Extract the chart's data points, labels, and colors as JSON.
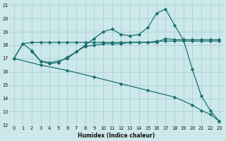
{
  "xlabel": "Humidex (Indice chaleur)",
  "background_color": "#cce8ea",
  "grid_color": "#aad0d4",
  "line_color": "#1a7070",
  "xlim": [
    -0.5,
    23.5
  ],
  "ylim": [
    12,
    21.2
  ],
  "yticks": [
    12,
    13,
    14,
    15,
    16,
    17,
    18,
    19,
    20,
    21
  ],
  "xticks": [
    0,
    1,
    2,
    3,
    4,
    5,
    6,
    7,
    8,
    9,
    10,
    11,
    12,
    13,
    14,
    15,
    16,
    17,
    18,
    19,
    20,
    21,
    22,
    23
  ],
  "series": [
    {
      "x": [
        0,
        1,
        2,
        3,
        4,
        5,
        6,
        7,
        8,
        9,
        10,
        11,
        12,
        13,
        14,
        15,
        16,
        17,
        18,
        19,
        20,
        21,
        22,
        23
      ],
      "y": [
        17.0,
        18.1,
        18.2,
        18.2,
        18.2,
        18.2,
        18.2,
        18.2,
        18.2,
        18.2,
        18.2,
        18.2,
        18.2,
        18.2,
        18.2,
        18.2,
        18.3,
        18.3,
        18.3,
        18.3,
        18.3,
        18.3,
        18.3,
        18.3
      ]
    },
    {
      "x": [
        0,
        1,
        2,
        3,
        4,
        5,
        6,
        7,
        8,
        9,
        10,
        11,
        12,
        13,
        14,
        15,
        16,
        17,
        18,
        19,
        20,
        21,
        22,
        23
      ],
      "y": [
        17.0,
        18.1,
        17.6,
        16.8,
        16.7,
        16.8,
        17.0,
        17.5,
        17.9,
        18.0,
        18.1,
        18.1,
        18.1,
        18.2,
        18.2,
        18.2,
        18.2,
        18.5,
        18.4,
        18.4,
        18.4,
        18.4,
        18.4,
        18.4
      ]
    },
    {
      "x": [
        2,
        3,
        4,
        5,
        6,
        7,
        8,
        9,
        10,
        11,
        12,
        13,
        14,
        15,
        16,
        17,
        18,
        19,
        20,
        21,
        22,
        23
      ],
      "y": [
        17.5,
        16.8,
        16.6,
        16.7,
        17.1,
        17.5,
        18.0,
        18.5,
        19.0,
        19.2,
        18.8,
        18.7,
        18.8,
        19.3,
        20.4,
        20.7,
        19.5,
        18.4,
        16.2,
        14.2,
        13.1,
        12.3
      ]
    },
    {
      "x": [
        0,
        3,
        6,
        9,
        12,
        15,
        18,
        20,
        21,
        22,
        23
      ],
      "y": [
        17.0,
        16.5,
        16.1,
        15.6,
        15.1,
        14.6,
        14.1,
        13.5,
        13.1,
        12.8,
        12.3
      ]
    }
  ]
}
